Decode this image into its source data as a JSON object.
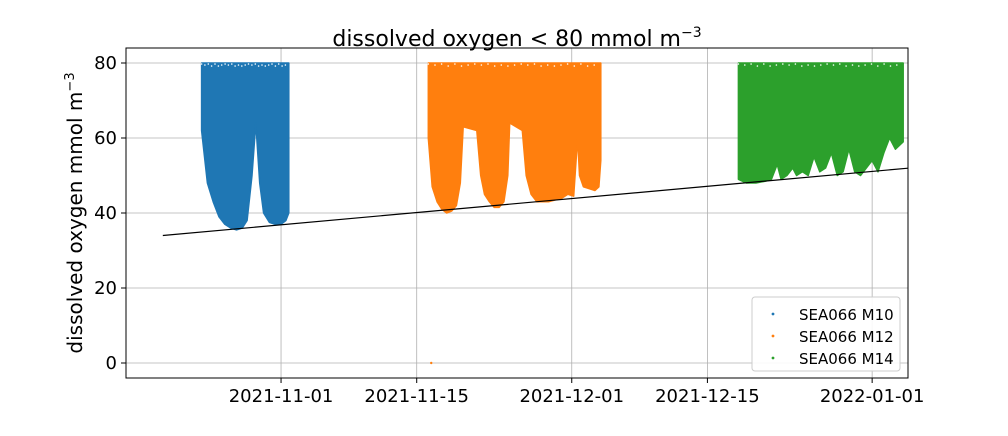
{
  "chart_data": {
    "type": "scatter",
    "title_main": "dissolved oxygen < 80 mmol m",
    "title_sup": "−3",
    "ylabel_main": "dissolved oxygen mmol m",
    "ylabel_sup": "−3",
    "xlabel": "",
    "x_tick_labels": [
      "2021-11-01",
      "2021-11-15",
      "2021-12-01",
      "2021-12-15",
      "2022-01-01"
    ],
    "x_tick_days": [
      0,
      14,
      30,
      44,
      61
    ],
    "y_ticks": [
      0,
      20,
      40,
      60,
      80
    ],
    "y_tick_labels": [
      "0",
      "20",
      "40",
      "60",
      "80"
    ],
    "xlim_days": [
      -16,
      64.7
    ],
    "ylim": [
      -4,
      84
    ],
    "grid": true,
    "legend_position": "lower right",
    "series": [
      {
        "name": "SEA066 M10",
        "color": "#1f77b4",
        "x_range_days": [
          -8.2,
          0.8
        ],
        "y_max": 80,
        "lower_envelope": [
          [
            -8.2,
            62
          ],
          [
            -7.6,
            48
          ],
          [
            -7.0,
            43
          ],
          [
            -6.4,
            39
          ],
          [
            -5.8,
            37
          ],
          [
            -5.2,
            36
          ],
          [
            -4.6,
            35.5
          ],
          [
            -4.0,
            36
          ],
          [
            -3.5,
            38
          ],
          [
            -3.0,
            50
          ],
          [
            -2.6,
            64
          ],
          [
            -2.2,
            48
          ],
          [
            -1.8,
            40
          ],
          [
            -1.2,
            37.5
          ],
          [
            -0.6,
            37
          ],
          [
            0,
            37
          ],
          [
            0.5,
            38
          ],
          [
            0.8,
            40
          ]
        ]
      },
      {
        "name": "SEA066 M12",
        "color": "#ff7f0e",
        "x_range_days": [
          15.2,
          33.0
        ],
        "y_max": 80,
        "lower_envelope": [
          [
            15.2,
            60
          ],
          [
            15.6,
            47
          ],
          [
            16.1,
            43
          ],
          [
            16.6,
            41
          ],
          [
            17.1,
            40
          ],
          [
            17.6,
            40.5
          ],
          [
            18.1,
            42
          ],
          [
            18.5,
            48
          ],
          [
            18.8,
            63
          ],
          [
            20.2,
            62
          ],
          [
            20.6,
            50
          ],
          [
            21.0,
            45
          ],
          [
            21.5,
            43
          ],
          [
            22.0,
            41.5
          ],
          [
            22.5,
            41.5
          ],
          [
            23.0,
            43
          ],
          [
            23.4,
            50
          ],
          [
            23.6,
            64
          ],
          [
            24.9,
            62
          ],
          [
            25.3,
            50
          ],
          [
            25.8,
            45
          ],
          [
            26.4,
            43
          ],
          [
            27.0,
            43
          ],
          [
            27.6,
            43
          ],
          [
            28.3,
            43.5
          ],
          [
            29.0,
            44
          ],
          [
            29.6,
            45
          ],
          [
            30.2,
            44.5
          ],
          [
            30.6,
            60
          ],
          [
            30.8,
            50
          ],
          [
            31.2,
            47
          ],
          [
            31.8,
            46.5
          ],
          [
            32.4,
            46
          ],
          [
            32.8,
            47
          ],
          [
            33.0,
            54
          ]
        ]
      },
      {
        "name": "SEA066 M14",
        "color": "#2ca02c",
        "x_range_days": [
          47.2,
          64.2
        ],
        "y_max": 80,
        "lower_envelope": [
          [
            47.2,
            49
          ],
          [
            48.0,
            48
          ],
          [
            49.0,
            48
          ],
          [
            50.0,
            48.5
          ],
          [
            50.6,
            49
          ],
          [
            51.2,
            53
          ],
          [
            51.6,
            49
          ],
          [
            52.2,
            50
          ],
          [
            52.8,
            52
          ],
          [
            53.2,
            50
          ],
          [
            53.8,
            51
          ],
          [
            54.4,
            50
          ],
          [
            55.0,
            55
          ],
          [
            55.6,
            51
          ],
          [
            56.2,
            52
          ],
          [
            56.8,
            56
          ],
          [
            57.4,
            50
          ],
          [
            58.0,
            51
          ],
          [
            58.6,
            57
          ],
          [
            59.2,
            51
          ],
          [
            59.8,
            50
          ],
          [
            60.4,
            52
          ],
          [
            61.0,
            54
          ],
          [
            61.6,
            51
          ],
          [
            62.2,
            56
          ],
          [
            62.8,
            60
          ],
          [
            63.4,
            57
          ],
          [
            64.2,
            59
          ]
        ]
      }
    ],
    "reference_line": {
      "color": "#000000",
      "points": [
        [
          -12.2,
          34
        ],
        [
          64.9,
          52
        ]
      ]
    },
    "outlier_point": {
      "x_day": 15.5,
      "y": 0
    }
  }
}
